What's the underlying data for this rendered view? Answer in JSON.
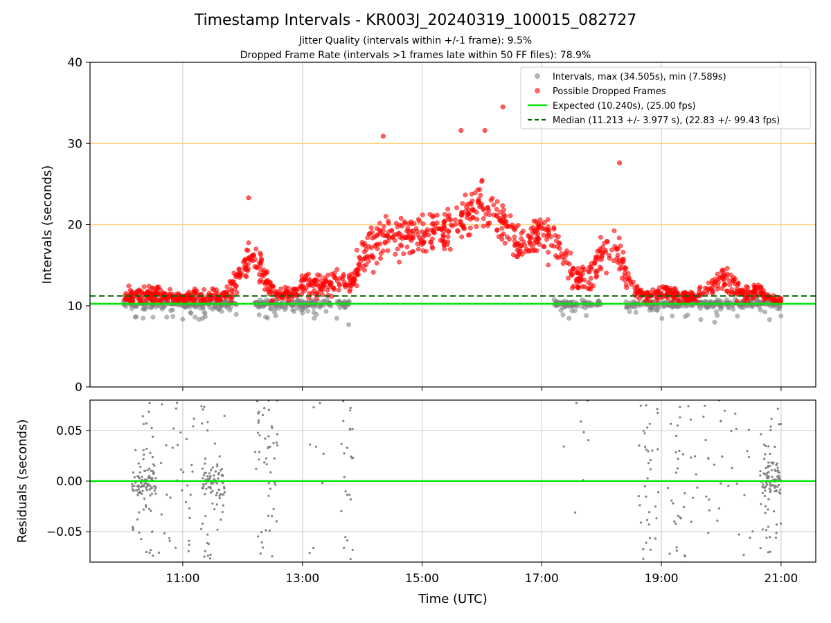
{
  "title": "Timestamp Intervals - KR003J_20240319_100015_082727",
  "subtitle_1": "Jitter Quality (intervals within +/-1 frame): 9.5%",
  "subtitle_2": "Dropped Frame Rate (intervals >1 frames late within 50 FF files): 78.9%",
  "colors": {
    "normal": "#808080",
    "dropped": "#ff0000",
    "expected": "#00e600",
    "median": "#006400",
    "threshold": "#ffd27a",
    "grid": "#c8c8c8"
  },
  "chart_data": [
    {
      "type": "scatter",
      "panel": "intervals",
      "xlabel": "",
      "ylabel": "Intervals (seconds)",
      "x_unit": "hours (UTC)",
      "xlim": [
        9.45,
        21.58
      ],
      "ylim": [
        0,
        40
      ],
      "yticks": [
        0,
        10,
        20,
        30,
        40
      ],
      "ytick_labels": [
        "0",
        "10",
        "20",
        "30",
        "40"
      ],
      "xticks": [
        11,
        13,
        15,
        17,
        19,
        21
      ],
      "grid": true,
      "legend_position": "top-right",
      "legend": [
        {
          "label": "Intervals, max (34.505s), min (7.589s)",
          "kind": "marker",
          "color": "#808080"
        },
        {
          "label": "Possible Dropped Frames",
          "kind": "marker",
          "color": "#ff0000"
        },
        {
          "label": "Expected (10.240s), (25.00 fps)",
          "kind": "line",
          "color": "#00e600"
        },
        {
          "label": "Median (11.213 +/- 3.977 s), (22.83 +/- 99.43 fps)",
          "kind": "dashed",
          "color": "#006400"
        }
      ],
      "expected_value": 10.24,
      "median_value": 11.213,
      "threshold_lines": [
        20,
        30
      ],
      "max_interval": 34.505,
      "min_interval": 7.589,
      "outliers": [
        [
          14.35,
          30.9
        ],
        [
          16.35,
          34.5
        ],
        [
          15.65,
          31.6
        ],
        [
          16.05,
          31.6
        ],
        [
          12.1,
          23.3
        ],
        [
          18.3,
          27.6
        ]
      ],
      "dropped_profile": {
        "time": [
          10.0,
          10.3,
          10.6,
          11.0,
          11.3,
          11.6,
          11.8,
          12.0,
          12.2,
          12.4,
          12.6,
          12.8,
          13.0,
          13.3,
          13.6,
          13.8,
          14.0,
          14.3,
          14.6,
          15.0,
          15.3,
          15.6,
          15.8,
          16.0,
          16.3,
          16.6,
          16.8,
          17.0,
          17.2,
          17.4,
          17.6,
          17.8,
          18.0,
          18.2,
          18.4,
          18.6,
          18.8,
          19.0,
          19.3,
          19.6,
          19.8,
          20.0,
          20.2,
          20.4,
          20.6,
          20.8,
          21.0
        ],
        "level": [
          10.8,
          11.5,
          11.3,
          11.0,
          11.3,
          11.0,
          11.8,
          14.5,
          16.5,
          12.5,
          11.5,
          11.2,
          12.5,
          12.8,
          12.8,
          12.5,
          16.5,
          18.5,
          18.5,
          18.5,
          19.5,
          20.0,
          21.5,
          22.5,
          21.0,
          17.5,
          18.0,
          19.0,
          18.0,
          15.5,
          13.0,
          13.5,
          16.5,
          18.0,
          14.0,
          11.5,
          11.2,
          11.5,
          11.2,
          11.0,
          12.0,
          13.5,
          12.5,
          11.5,
          12.0,
          10.8,
          10.5
        ],
        "spread": [
          1.2,
          1.5,
          1.3,
          0.8,
          1.2,
          1.0,
          1.5,
          2.5,
          3.5,
          2.0,
          1.2,
          1.0,
          1.8,
          1.8,
          1.8,
          1.8,
          3.0,
          3.5,
          3.5,
          3.5,
          3.5,
          3.5,
          3.5,
          3.5,
          3.5,
          3.0,
          3.0,
          3.0,
          3.0,
          2.5,
          2.0,
          2.2,
          2.8,
          3.0,
          2.5,
          1.2,
          1.0,
          1.3,
          1.0,
          1.0,
          1.5,
          2.0,
          1.8,
          1.2,
          1.5,
          0.8,
          0.5
        ]
      },
      "normal_segments": [
        [
          10.0,
          11.9
        ],
        [
          12.2,
          13.8
        ],
        [
          17.2,
          18.0
        ],
        [
          18.4,
          21.0
        ]
      ],
      "normal_level": 10.24,
      "normal_spread": 0.8
    },
    {
      "type": "scatter",
      "panel": "residuals",
      "xlabel": "Time (UTC)",
      "ylabel": "Residuals (seconds)",
      "xlim": [
        9.45,
        21.58
      ],
      "ylim": [
        -0.08,
        0.08
      ],
      "yticks": [
        -0.05,
        0,
        0.05
      ],
      "ytick_labels": [
        "−0.05",
        "0.00",
        "0.05"
      ],
      "xticks": [
        11,
        13,
        15,
        17,
        19,
        21
      ],
      "xtick_labels": [
        "11:00",
        "13:00",
        "15:00",
        "17:00",
        "19:00",
        "21:00"
      ],
      "grid": true,
      "zero_line_color": "#00e600",
      "clusters": [
        {
          "x0": 10.15,
          "x1": 10.55,
          "count": 130,
          "dense": true
        },
        {
          "x0": 10.6,
          "x1": 11.2,
          "count": 40,
          "dense": false
        },
        {
          "x0": 11.3,
          "x1": 11.7,
          "count": 95,
          "dense": true
        },
        {
          "x0": 12.2,
          "x1": 12.6,
          "count": 55,
          "dense": false
        },
        {
          "x0": 13.1,
          "x1": 13.4,
          "count": 8,
          "dense": false
        },
        {
          "x0": 13.65,
          "x1": 13.85,
          "count": 25,
          "dense": false
        },
        {
          "x0": 17.35,
          "x1": 17.9,
          "count": 10,
          "dense": false
        },
        {
          "x0": 18.6,
          "x1": 18.95,
          "count": 40,
          "dense": false
        },
        {
          "x0": 19.1,
          "x1": 19.6,
          "count": 40,
          "dense": false
        },
        {
          "x0": 19.7,
          "x1": 20.6,
          "count": 35,
          "dense": false
        },
        {
          "x0": 20.65,
          "x1": 21.0,
          "count": 110,
          "dense": true
        }
      ]
    }
  ]
}
